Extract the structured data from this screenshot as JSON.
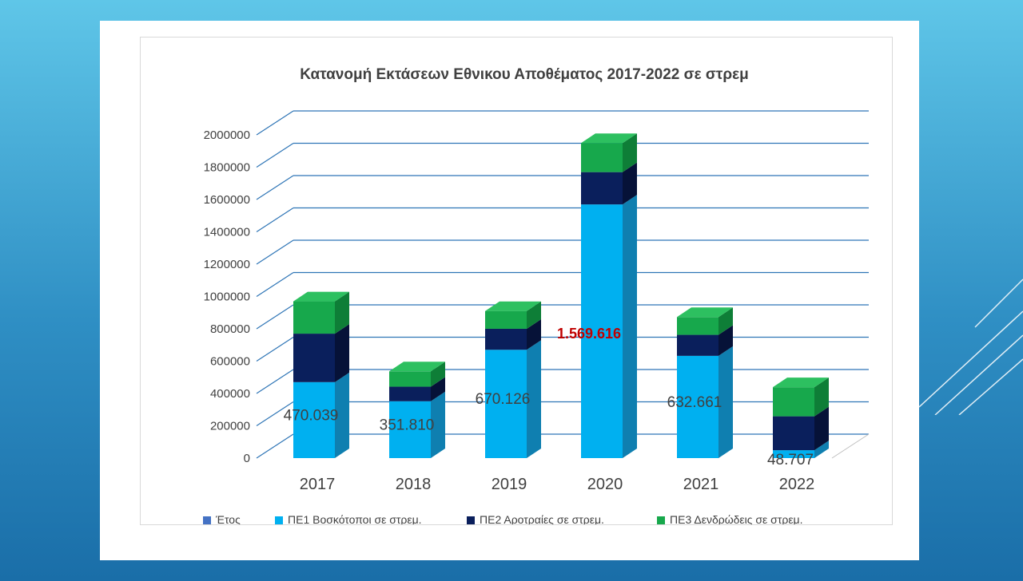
{
  "colors": {
    "pe1": "#00b0f0",
    "pe1_side": "#0f7fb0",
    "pe1_top": "#33c1f3",
    "pe2": "#0a1f5c",
    "pe2_side": "#061238",
    "pe2_top": "#1a3680",
    "pe3": "#17a84c",
    "pe3_side": "#0e7e37",
    "pe3_top": "#2dc060",
    "etos": "#4472c4",
    "grid": "#2e75b6",
    "highlight": "#c00000"
  },
  "chart_data": {
    "type": "bar",
    "stacked": true,
    "three_d": true,
    "title": "Κατανομή Εκτάσεων Εθνικου Αποθέματος 2017-2022 σε στρεμ",
    "categories": [
      "2017",
      "2018",
      "2019",
      "2020",
      "2021",
      "2022"
    ],
    "yticks": [
      "2000000",
      "1800000",
      "1600000",
      "1400000",
      "1200000",
      "1000000",
      "800000",
      "600000",
      "400000",
      "200000",
      "0"
    ],
    "ylim": [
      0,
      2000000
    ],
    "grid": true,
    "legend_position": "bottom",
    "legend": [
      "Έτος",
      "ΠΕ1 Βοσκότοποι  σε στρεμ.",
      "ΠΕ2 Αροτραίες  σε στρεμ.",
      "ΠΕ3 Δενδρώδεις  σε  στρεμ."
    ],
    "series": [
      {
        "name": "ΠΕ1 Βοσκότοποι  σε στρεμ.",
        "values": [
          470039,
          351810,
          670126,
          1569616,
          632661,
          48707
        ]
      },
      {
        "name": "ΠΕ2 Αροτραίες  σε στρεμ.",
        "values": [
          300000,
          90000,
          130000,
          200000,
          130000,
          210000
        ]
      },
      {
        "name": "ΠΕ3 Δενδρώδεις  σε  στρεμ.",
        "values": [
          200000,
          95000,
          110000,
          180000,
          110000,
          180000
        ]
      }
    ],
    "data_labels": [
      "470.039",
      "351.810",
      "670.126",
      "1.569.616",
      "632.661",
      "48.707"
    ],
    "highlighted_label_index": 3
  }
}
